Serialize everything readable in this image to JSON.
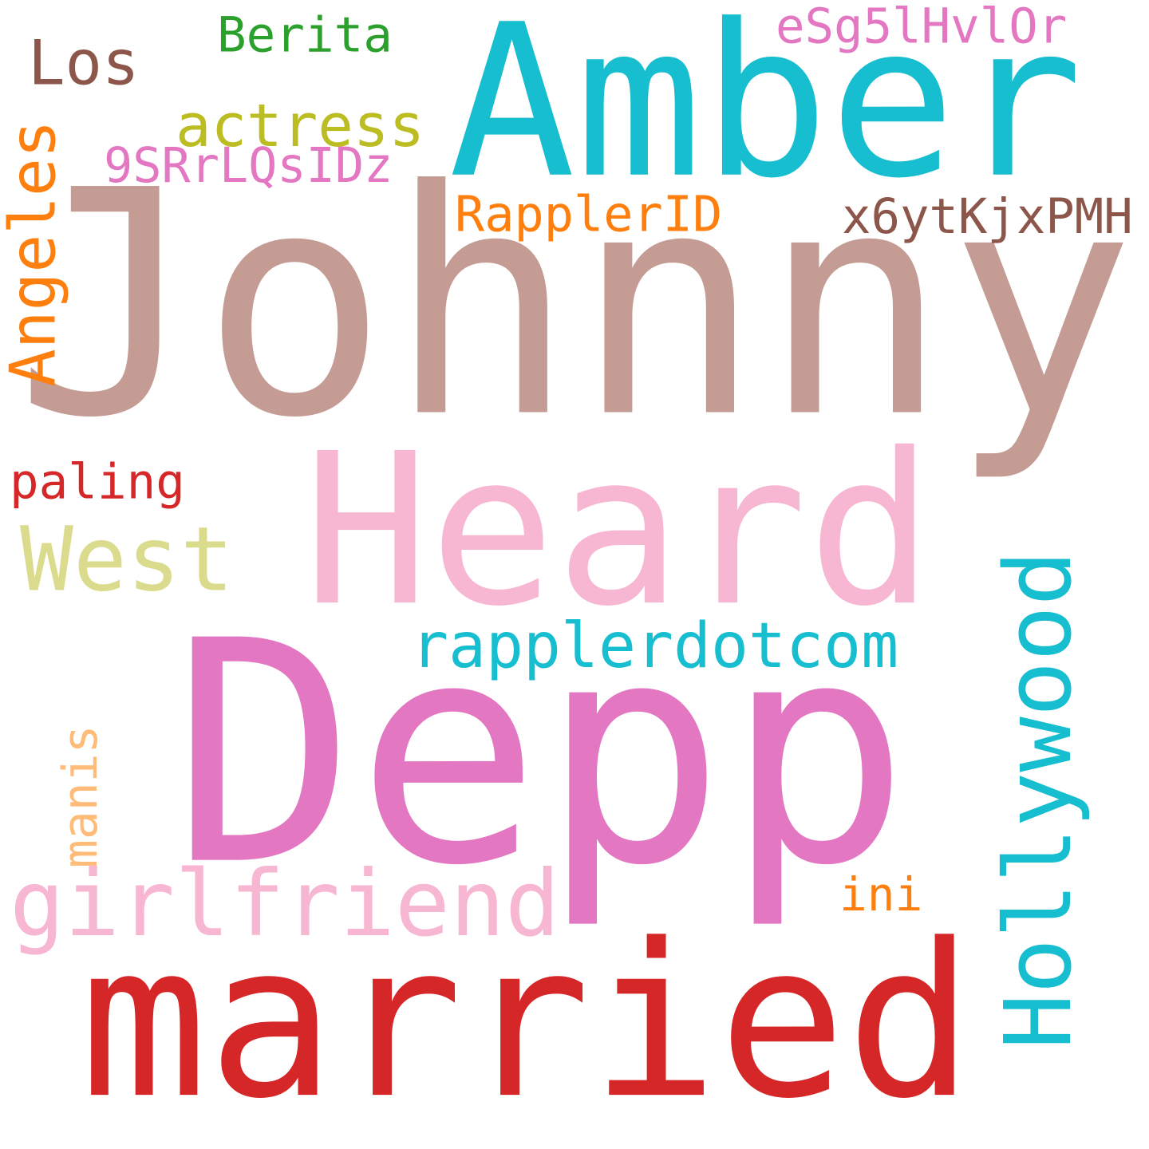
{
  "words": [
    {
      "key": "johnny",
      "text": "Johnny",
      "color": "#c49c94"
    },
    {
      "key": "amber",
      "text": "Amber",
      "color": "#17becf"
    },
    {
      "key": "heard",
      "text": "Heard",
      "color": "#f7b6d2"
    },
    {
      "key": "depp",
      "text": "Depp",
      "color": "#e377c2"
    },
    {
      "key": "married",
      "text": "married",
      "color": "#d62728"
    },
    {
      "key": "girlfriend",
      "text": "girlfriend",
      "color": "#f7b6d2"
    },
    {
      "key": "hollywood",
      "text": "Hollywood",
      "color": "#17becf"
    },
    {
      "key": "rapplerdotcom",
      "text": "rapplerdotcom",
      "color": "#17becf"
    },
    {
      "key": "west",
      "text": "West",
      "color": "#dbdb8d"
    },
    {
      "key": "angeles",
      "text": "Angeles",
      "color": "#ff7f0e"
    },
    {
      "key": "los",
      "text": "Los",
      "color": "#8c564b"
    },
    {
      "key": "actress",
      "text": "actress",
      "color": "#bcbd22"
    },
    {
      "key": "berita",
      "text": "Berita",
      "color": "#2ca02c"
    },
    {
      "key": "esg",
      "text": "eSg5lHvlOr",
      "color": "#e377c2"
    },
    {
      "key": "srr",
      "text": "9SRrLQsIDz",
      "color": "#e377c2"
    },
    {
      "key": "rapplerid",
      "text": "RapplerID",
      "color": "#ff7f0e"
    },
    {
      "key": "x6y",
      "text": "x6ytKjxPMH",
      "color": "#8c564b"
    },
    {
      "key": "paling",
      "text": "paling",
      "color": "#d62728"
    },
    {
      "key": "manis",
      "text": "manis",
      "color": "#ffbb78"
    },
    {
      "key": "ini",
      "text": "ini",
      "color": "#ff7f0e"
    }
  ]
}
